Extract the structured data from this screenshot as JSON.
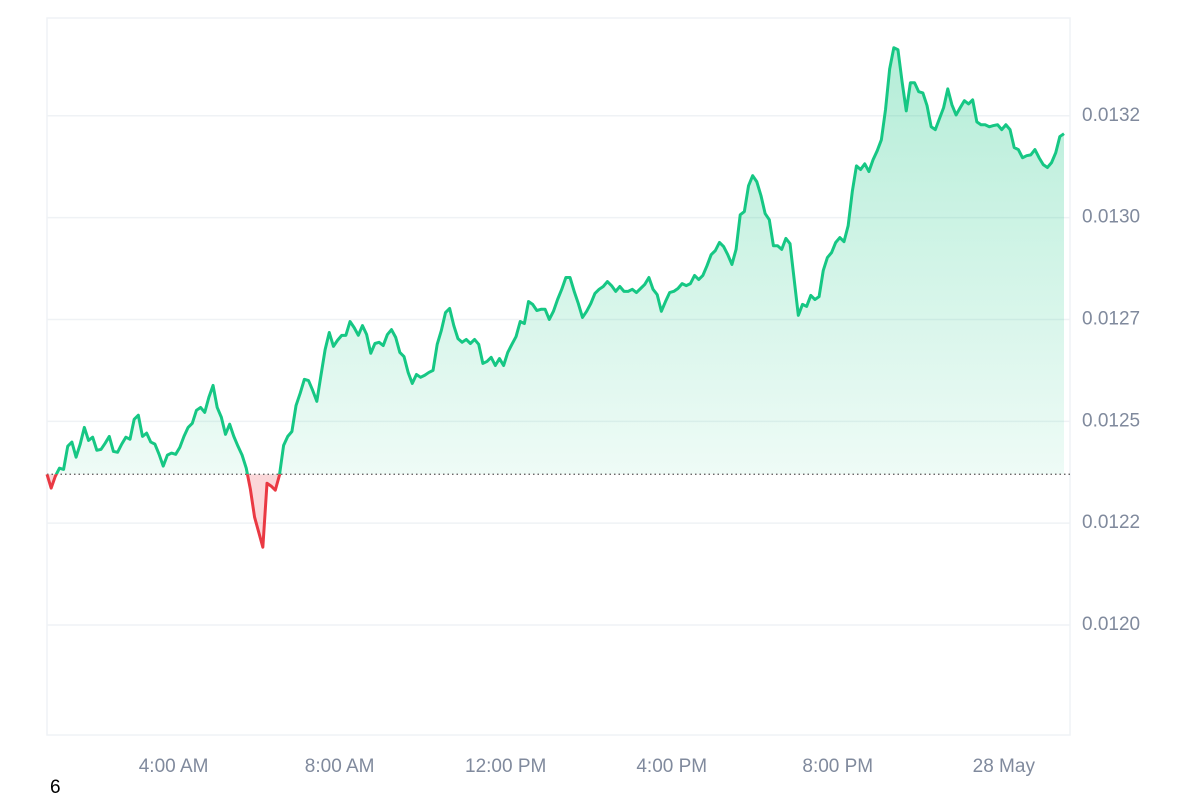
{
  "chart_data": {
    "type": "line",
    "x": [
      0.95,
      1.05,
      1.15,
      1.25,
      1.35,
      1.45,
      1.55,
      1.65,
      1.75,
      1.85,
      1.95,
      2.05,
      2.15,
      2.25,
      2.35,
      2.45,
      2.55,
      2.65,
      2.75,
      2.85,
      2.95,
      3.05,
      3.15,
      3.25,
      3.35,
      3.45,
      3.55,
      3.65,
      3.75,
      3.85,
      3.95,
      4.05,
      4.15,
      4.25,
      4.35,
      4.45,
      4.55,
      4.65,
      4.75,
      4.85,
      4.95,
      5.05,
      5.15,
      5.25,
      5.35,
      5.45,
      5.55,
      5.65,
      5.75,
      5.85,
      5.95,
      6.05,
      6.15,
      6.25,
      6.35,
      6.45,
      6.55,
      6.65,
      6.75,
      6.85,
      6.95,
      7.05,
      7.15,
      7.25,
      7.35,
      7.45,
      7.55,
      7.65,
      7.75,
      7.85,
      7.95,
      8.05,
      8.15,
      8.25,
      8.35,
      8.45,
      8.55,
      8.65,
      8.75,
      8.85,
      8.95,
      9.05,
      9.15,
      9.25,
      9.35,
      9.45,
      9.55,
      9.65,
      9.75,
      9.85,
      9.95,
      10.05,
      10.15,
      10.25,
      10.35,
      10.45,
      10.55,
      10.65,
      10.75,
      10.85,
      10.95,
      11.05,
      11.15,
      11.25,
      11.35,
      11.45,
      11.55,
      11.65,
      11.75,
      11.85,
      11.95,
      12.05,
      12.15,
      12.25,
      12.35,
      12.45,
      12.55,
      12.65,
      12.75,
      12.85,
      12.95,
      13.05,
      13.15,
      13.25,
      13.35,
      13.45,
      13.55,
      13.65,
      13.75,
      13.85,
      13.95,
      14.05,
      14.15,
      14.25,
      14.35,
      14.45,
      14.55,
      14.65,
      14.75,
      14.85,
      14.95,
      15.05,
      15.15,
      15.25,
      15.35,
      15.45,
      15.55,
      15.65,
      15.75,
      15.85,
      15.95,
      16.05,
      16.15,
      16.25,
      16.35,
      16.45,
      16.55,
      16.65,
      16.75,
      16.85,
      16.95,
      17.05,
      17.15,
      17.25,
      17.35,
      17.45,
      17.55,
      17.65,
      17.75,
      17.85,
      17.95,
      18.05,
      18.15,
      18.25,
      18.35,
      18.45,
      18.55,
      18.65,
      18.75,
      18.85,
      18.95,
      19.05,
      19.15,
      19.25,
      19.35,
      19.45,
      19.55,
      19.65,
      19.75,
      19.85,
      19.95,
      20.05,
      20.15,
      20.25,
      20.35,
      20.45,
      20.55,
      20.65,
      20.75,
      20.85,
      20.95,
      21.05,
      21.15,
      21.25,
      21.35,
      21.45,
      21.55,
      21.65,
      21.75,
      21.85,
      21.95,
      22.05,
      22.15,
      22.25,
      22.35,
      22.45,
      22.55,
      22.65,
      22.75,
      22.85,
      22.95,
      23.05,
      23.15,
      23.25,
      23.35,
      23.45,
      23.55,
      23.65,
      23.75,
      23.85,
      23.95,
      24.05,
      24.15,
      24.25,
      24.35,
      24.45,
      24.55,
      24.65,
      24.75,
      24.85,
      24.95,
      25.05,
      25.15,
      25.25,
      25.35,
      25.45
    ],
    "values": [
      0.01237,
      0.012336,
      0.012365,
      0.012385,
      0.012382,
      0.012439,
      0.012449,
      0.012412,
      0.012444,
      0.012485,
      0.012453,
      0.012461,
      0.012429,
      0.012431,
      0.012446,
      0.012463,
      0.012426,
      0.012424,
      0.012444,
      0.012461,
      0.012456,
      0.012505,
      0.012515,
      0.012463,
      0.012471,
      0.012449,
      0.012444,
      0.012419,
      0.01239,
      0.012417,
      0.012422,
      0.012419,
      0.012436,
      0.012463,
      0.012485,
      0.012495,
      0.012527,
      0.012534,
      0.012522,
      0.012559,
      0.012588,
      0.012534,
      0.01251,
      0.012468,
      0.012493,
      0.012463,
      0.012439,
      0.012417,
      0.012385,
      0.012333,
      0.012265,
      0.012228,
      0.012191,
      0.012348,
      0.012341,
      0.012331,
      0.012368,
      0.012441,
      0.012463,
      0.012475,
      0.012539,
      0.012569,
      0.012603,
      0.0126,
      0.012576,
      0.012549,
      0.012613,
      0.012676,
      0.012718,
      0.012684,
      0.012699,
      0.012711,
      0.012711,
      0.012745,
      0.01273,
      0.012711,
      0.012735,
      0.012713,
      0.012667,
      0.012691,
      0.012694,
      0.012686,
      0.012713,
      0.012725,
      0.012706,
      0.012669,
      0.012659,
      0.01262,
      0.012593,
      0.012615,
      0.012608,
      0.012613,
      0.01262,
      0.012625,
      0.012689,
      0.012723,
      0.012767,
      0.012777,
      0.012735,
      0.012703,
      0.012694,
      0.012701,
      0.012691,
      0.012701,
      0.012689,
      0.012642,
      0.012647,
      0.012657,
      0.012637,
      0.012654,
      0.012637,
      0.012669,
      0.012689,
      0.012708,
      0.012745,
      0.01274,
      0.012794,
      0.012787,
      0.012772,
      0.012775,
      0.012775,
      0.01275,
      0.01277,
      0.012799,
      0.012824,
      0.012853,
      0.012853,
      0.012819,
      0.012789,
      0.012755,
      0.01277,
      0.012789,
      0.012814,
      0.012824,
      0.012831,
      0.012843,
      0.012833,
      0.012819,
      0.012831,
      0.012819,
      0.012819,
      0.012824,
      0.012816,
      0.012826,
      0.012836,
      0.012853,
      0.012824,
      0.012811,
      0.01277,
      0.012794,
      0.012816,
      0.012819,
      0.012826,
      0.012838,
      0.012833,
      0.012838,
      0.012858,
      0.012848,
      0.012858,
      0.012882,
      0.012909,
      0.012919,
      0.012939,
      0.012929,
      0.012909,
      0.012885,
      0.012922,
      0.013007,
      0.013015,
      0.013078,
      0.013103,
      0.013088,
      0.013054,
      0.01301,
      0.012995,
      0.012931,
      0.012931,
      0.012922,
      0.012949,
      0.012936,
      0.012848,
      0.01276,
      0.012787,
      0.012782,
      0.012809,
      0.012799,
      0.012806,
      0.01287,
      0.012902,
      0.012914,
      0.012939,
      0.012951,
      0.012941,
      0.01298,
      0.013064,
      0.013127,
      0.013118,
      0.013132,
      0.013113,
      0.013142,
      0.013164,
      0.013191,
      0.013265,
      0.013365,
      0.013417,
      0.013412,
      0.013333,
      0.013262,
      0.013331,
      0.013331,
      0.013309,
      0.013306,
      0.013275,
      0.013223,
      0.013216,
      0.013243,
      0.01327,
      0.013316,
      0.013277,
      0.013252,
      0.01327,
      0.013287,
      0.013279,
      0.013289,
      0.013235,
      0.013228,
      0.013228,
      0.013223,
      0.013226,
      0.013228,
      0.013216,
      0.013228,
      0.013216,
      0.013172,
      0.013167,
      0.013147,
      0.013152,
      0.013154,
      0.013167,
      0.013147,
      0.01313,
      0.013123,
      0.013135,
      0.013159,
      0.013199,
      0.013206
    ],
    "color": "#16c784",
    "down_color": "#ea3943",
    "xlim": [
      0.95,
      25.45
    ],
    "xticks": [
      {
        "value": 4,
        "label": "4:00 AM"
      },
      {
        "value": 8,
        "label": "8:00 AM"
      },
      {
        "value": 12,
        "label": "12:00 PM"
      },
      {
        "value": 16,
        "label": "4:00 PM"
      },
      {
        "value": 20,
        "label": "8:00 PM"
      },
      {
        "value": 24,
        "label": "28 May"
      }
    ],
    "ylim": [
      0.01173,
      0.01349
    ],
    "yticks": [
      {
        "value": 0.012,
        "label": "0.0120"
      },
      {
        "value": 0.01225,
        "label": "0.0122"
      },
      {
        "value": 0.0125,
        "label": "0.0125"
      },
      {
        "value": 0.01275,
        "label": "0.0127"
      },
      {
        "value": 0.013,
        "label": "0.0130"
      },
      {
        "value": 0.01325,
        "label": "0.0132"
      }
    ],
    "grid": true,
    "footnote": "6"
  }
}
